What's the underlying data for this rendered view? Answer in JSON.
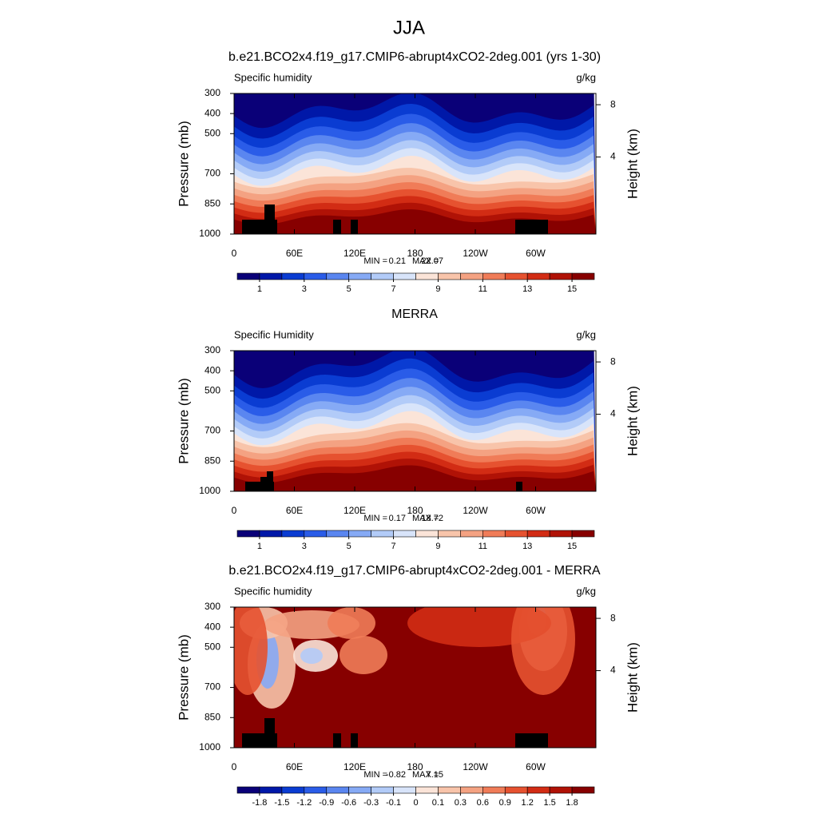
{
  "figure_title": "JJA",
  "chart_data": [
    {
      "type": "contour",
      "title": "b.e21.BCO2x4.f19_g17.CMIP6-abrupt4xCO2-2deg.001 (yrs 1-30)",
      "left_label": "Specific humidity",
      "right_label": "g/kg",
      "ylabel": "Pressure (mb)",
      "y2label": "Height (km)",
      "xlim": [
        0,
        360
      ],
      "xticks": [
        0,
        {
          "value": 60,
          "label": "60E"
        },
        {
          "value": 120,
          "label": "120E"
        },
        180,
        {
          "value": 240,
          "label": "120W"
        },
        {
          "value": 300,
          "label": "60W"
        }
      ],
      "ylim": [
        1000,
        300
      ],
      "yticks": [
        300,
        400,
        500,
        700,
        850,
        1000
      ],
      "y2ticks": [
        8,
        4
      ],
      "stats": {
        "min_label": "MIN =",
        "min": 0.21,
        "max_label": "MAX =",
        "max": 22.07
      },
      "colorbar": {
        "levels": [
          1,
          2,
          3,
          4,
          5,
          6,
          7,
          8,
          9,
          10,
          11,
          12,
          13,
          14,
          15
        ],
        "ticks": [
          1,
          3,
          5,
          7,
          9,
          11,
          13,
          15
        ],
        "colors": [
          "#0a0078",
          "#0018a8",
          "#0a3cd2",
          "#2a5ce8",
          "#5a86f0",
          "#86aaf5",
          "#b2cbf8",
          "#d8e4fa",
          "#fbe4d8",
          "#f8c4aa",
          "#f4a282",
          "#f07c58",
          "#e65230",
          "#d22c14",
          "#b01206",
          "#870000"
        ]
      }
    },
    {
      "type": "contour",
      "title": "MERRA",
      "left_label": "Specific Humidity",
      "right_label": "g/kg",
      "ylabel": "Pressure (mb)",
      "y2label": "Height (km)",
      "xlim": [
        0,
        360
      ],
      "xticks": [
        0,
        {
          "value": 60,
          "label": "60E"
        },
        {
          "value": 120,
          "label": "120E"
        },
        180,
        {
          "value": 240,
          "label": "120W"
        },
        {
          "value": 300,
          "label": "60W"
        }
      ],
      "ylim": [
        1000,
        300
      ],
      "yticks": [
        300,
        400,
        500,
        700,
        850,
        1000
      ],
      "y2ticks": [
        8,
        4
      ],
      "stats": {
        "min_label": "MIN =",
        "min": 0.17,
        "max_label": "MAX =",
        "max": 18.72
      },
      "colorbar": {
        "levels": [
          1,
          2,
          3,
          4,
          5,
          6,
          7,
          8,
          9,
          10,
          11,
          12,
          13,
          14,
          15
        ],
        "ticks": [
          1,
          3,
          5,
          7,
          9,
          11,
          13,
          15
        ],
        "colors": [
          "#0a0078",
          "#0018a8",
          "#0a3cd2",
          "#2a5ce8",
          "#5a86f0",
          "#86aaf5",
          "#b2cbf8",
          "#d8e4fa",
          "#fbe4d8",
          "#f8c4aa",
          "#f4a282",
          "#f07c58",
          "#e65230",
          "#d22c14",
          "#b01206",
          "#870000"
        ]
      }
    },
    {
      "type": "contour",
      "title": "b.e21.BCO2x4.f19_g17.CMIP6-abrupt4xCO2-2deg.001 - MERRA",
      "left_label": "Specific humidity",
      "right_label": "g/kg",
      "ylabel": "Pressure (mb)",
      "y2label": "Height (km)",
      "xlim": [
        0,
        360
      ],
      "xticks": [
        0,
        {
          "value": 60,
          "label": "60E"
        },
        {
          "value": 120,
          "label": "120E"
        },
        180,
        {
          "value": 240,
          "label": "120W"
        },
        {
          "value": 300,
          "label": "60W"
        }
      ],
      "ylim": [
        1000,
        300
      ],
      "yticks": [
        300,
        400,
        500,
        700,
        850,
        1000
      ],
      "y2ticks": [
        8,
        4
      ],
      "stats": {
        "min_label": "MIN =",
        "min": -0.82,
        "max_label": "MAX =",
        "max": 7.15
      },
      "colorbar": {
        "levels": [
          -1.8,
          -1.5,
          -1.2,
          -0.9,
          -0.6,
          -0.3,
          -0.1,
          0,
          0.1,
          0.3,
          0.6,
          0.9,
          1.2,
          1.5,
          1.8
        ],
        "ticks": [
          -1.8,
          -1.5,
          -1.2,
          -0.9,
          -0.6,
          -0.3,
          -0.1,
          0,
          0.1,
          0.3,
          0.6,
          0.9,
          1.2,
          1.5,
          1.8
        ],
        "colors": [
          "#0a0078",
          "#0018a8",
          "#0a3cd2",
          "#2a5ce8",
          "#5a86f0",
          "#86aaf5",
          "#b2cbf8",
          "#d8e4fa",
          "#fbe4d8",
          "#f8c4aa",
          "#f4a282",
          "#f07c58",
          "#e65230",
          "#d22c14",
          "#b01206",
          "#870000"
        ]
      }
    }
  ]
}
